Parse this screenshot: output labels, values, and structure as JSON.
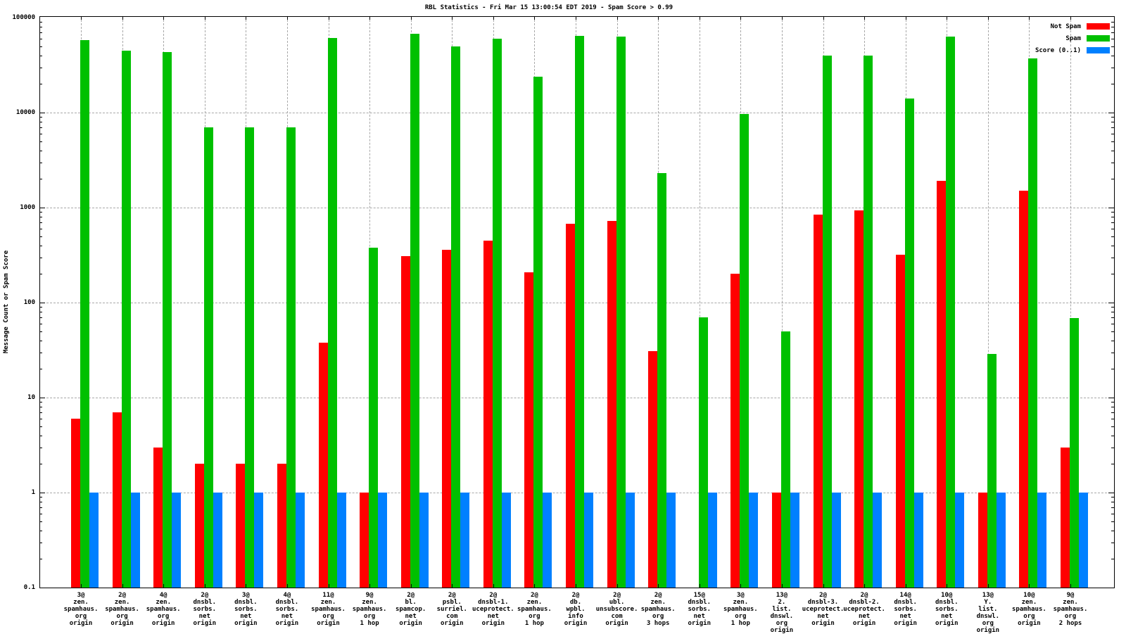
{
  "title": "RBL Statistics - Fri Mar 15 13:00:54 EDT 2019 - Spam Score > 0.99",
  "y_axis_label": "Message Count or Spam Score",
  "legend": [
    {
      "label": "Not Spam",
      "color": "#ff0000"
    },
    {
      "label": "Spam",
      "color": "#00c000"
    },
    {
      "label": "Score (0..1)",
      "color": "#0080ff"
    }
  ],
  "colors": {
    "not_spam": "#ff0000",
    "spam": "#00c000",
    "score": "#0080ff",
    "grid": "#a8a8a8",
    "axis": "#000000",
    "background": "#ffffff"
  },
  "chart_data": {
    "type": "bar",
    "scale": "log",
    "title": "RBL Statistics - Fri Mar 15 13:00:54 EDT 2019 - Spam Score > 0.99",
    "ylabel": "Message Count or Spam Score",
    "ylim": [
      0.1,
      100000
    ],
    "ytick_labels": [
      "100000",
      "10000",
      "1000",
      "100",
      "10",
      "1",
      "0.1"
    ],
    "grid": true,
    "legend_position": "top-right",
    "categories": [
      [
        "3@",
        "zen.",
        "spamhaus.",
        "org",
        "origin"
      ],
      [
        "2@",
        "zen.",
        "spamhaus.",
        "org",
        "origin"
      ],
      [
        "4@",
        "zen.",
        "spamhaus.",
        "org",
        "origin"
      ],
      [
        "2@",
        "dnsbl.",
        "sorbs.",
        "net",
        "origin"
      ],
      [
        "3@",
        "dnsbl.",
        "sorbs.",
        "net",
        "origin"
      ],
      [
        "4@",
        "dnsbl.",
        "sorbs.",
        "net",
        "origin"
      ],
      [
        "11@",
        "zen.",
        "spamhaus.",
        "org",
        "origin"
      ],
      [
        "9@",
        "zen.",
        "spamhaus.",
        "org",
        "1 hop"
      ],
      [
        "2@",
        "bl.",
        "spamcop.",
        "net",
        "origin"
      ],
      [
        "2@",
        "psbl.",
        "surriel.",
        "com",
        "origin"
      ],
      [
        "2@",
        "dnsbl-1.",
        "uceprotect.",
        "net",
        "origin"
      ],
      [
        "2@",
        "zen.",
        "spamhaus.",
        "org",
        "1 hop"
      ],
      [
        "2@",
        "db.",
        "wpbl.",
        "info",
        "origin"
      ],
      [
        "2@",
        "ubl.",
        "unsubscore.",
        "com",
        "origin"
      ],
      [
        "2@",
        "zen.",
        "spamhaus.",
        "org",
        "3 hops"
      ],
      [
        "15@",
        "dnsbl.",
        "sorbs.",
        "net",
        "origin"
      ],
      [
        "3@",
        "zen.",
        "spamhaus.",
        "org",
        "1 hop"
      ],
      [
        "13@",
        "2.",
        "list.",
        "dnswl.",
        "org",
        "origin"
      ],
      [
        "2@",
        "dnsbl-3.",
        "uceprotect.",
        "net",
        "origin"
      ],
      [
        "2@",
        "dnsbl-2.",
        "uceprotect.",
        "net",
        "origin"
      ],
      [
        "14@",
        "dnsbl.",
        "sorbs.",
        "net",
        "origin"
      ],
      [
        "10@",
        "dnsbl.",
        "sorbs.",
        "net",
        "origin"
      ],
      [
        "13@",
        "Y.",
        "list.",
        "dnswl.",
        "org",
        "origin"
      ],
      [
        "10@",
        "zen.",
        "spamhaus.",
        "org",
        "origin"
      ],
      [
        "9@",
        "zen.",
        "spamhaus.",
        "org",
        "2 hops"
      ]
    ],
    "series": [
      {
        "name": "Not Spam",
        "color": "#ff0000",
        "values": [
          6,
          7,
          3,
          2,
          2,
          2,
          38,
          1,
          310,
          360,
          450,
          210,
          680,
          720,
          31,
          null,
          200,
          1,
          840,
          930,
          320,
          1900,
          1,
          1500,
          3
        ]
      },
      {
        "name": "Spam",
        "color": "#00c000",
        "values": [
          58000,
          45000,
          43000,
          7000,
          7000,
          7000,
          61000,
          380,
          68000,
          50000,
          60000,
          24000,
          64000,
          63000,
          2300,
          70,
          9700,
          50,
          40000,
          40000,
          14000,
          63000,
          29,
          37000,
          69
        ]
      },
      {
        "name": "Score (0..1)",
        "color": "#0080ff",
        "values": [
          1,
          1,
          1,
          1,
          1,
          1,
          1,
          1,
          1,
          1,
          1,
          1,
          1,
          1,
          1,
          1,
          1,
          1,
          1,
          1,
          1,
          1,
          1,
          1,
          1
        ]
      }
    ]
  }
}
